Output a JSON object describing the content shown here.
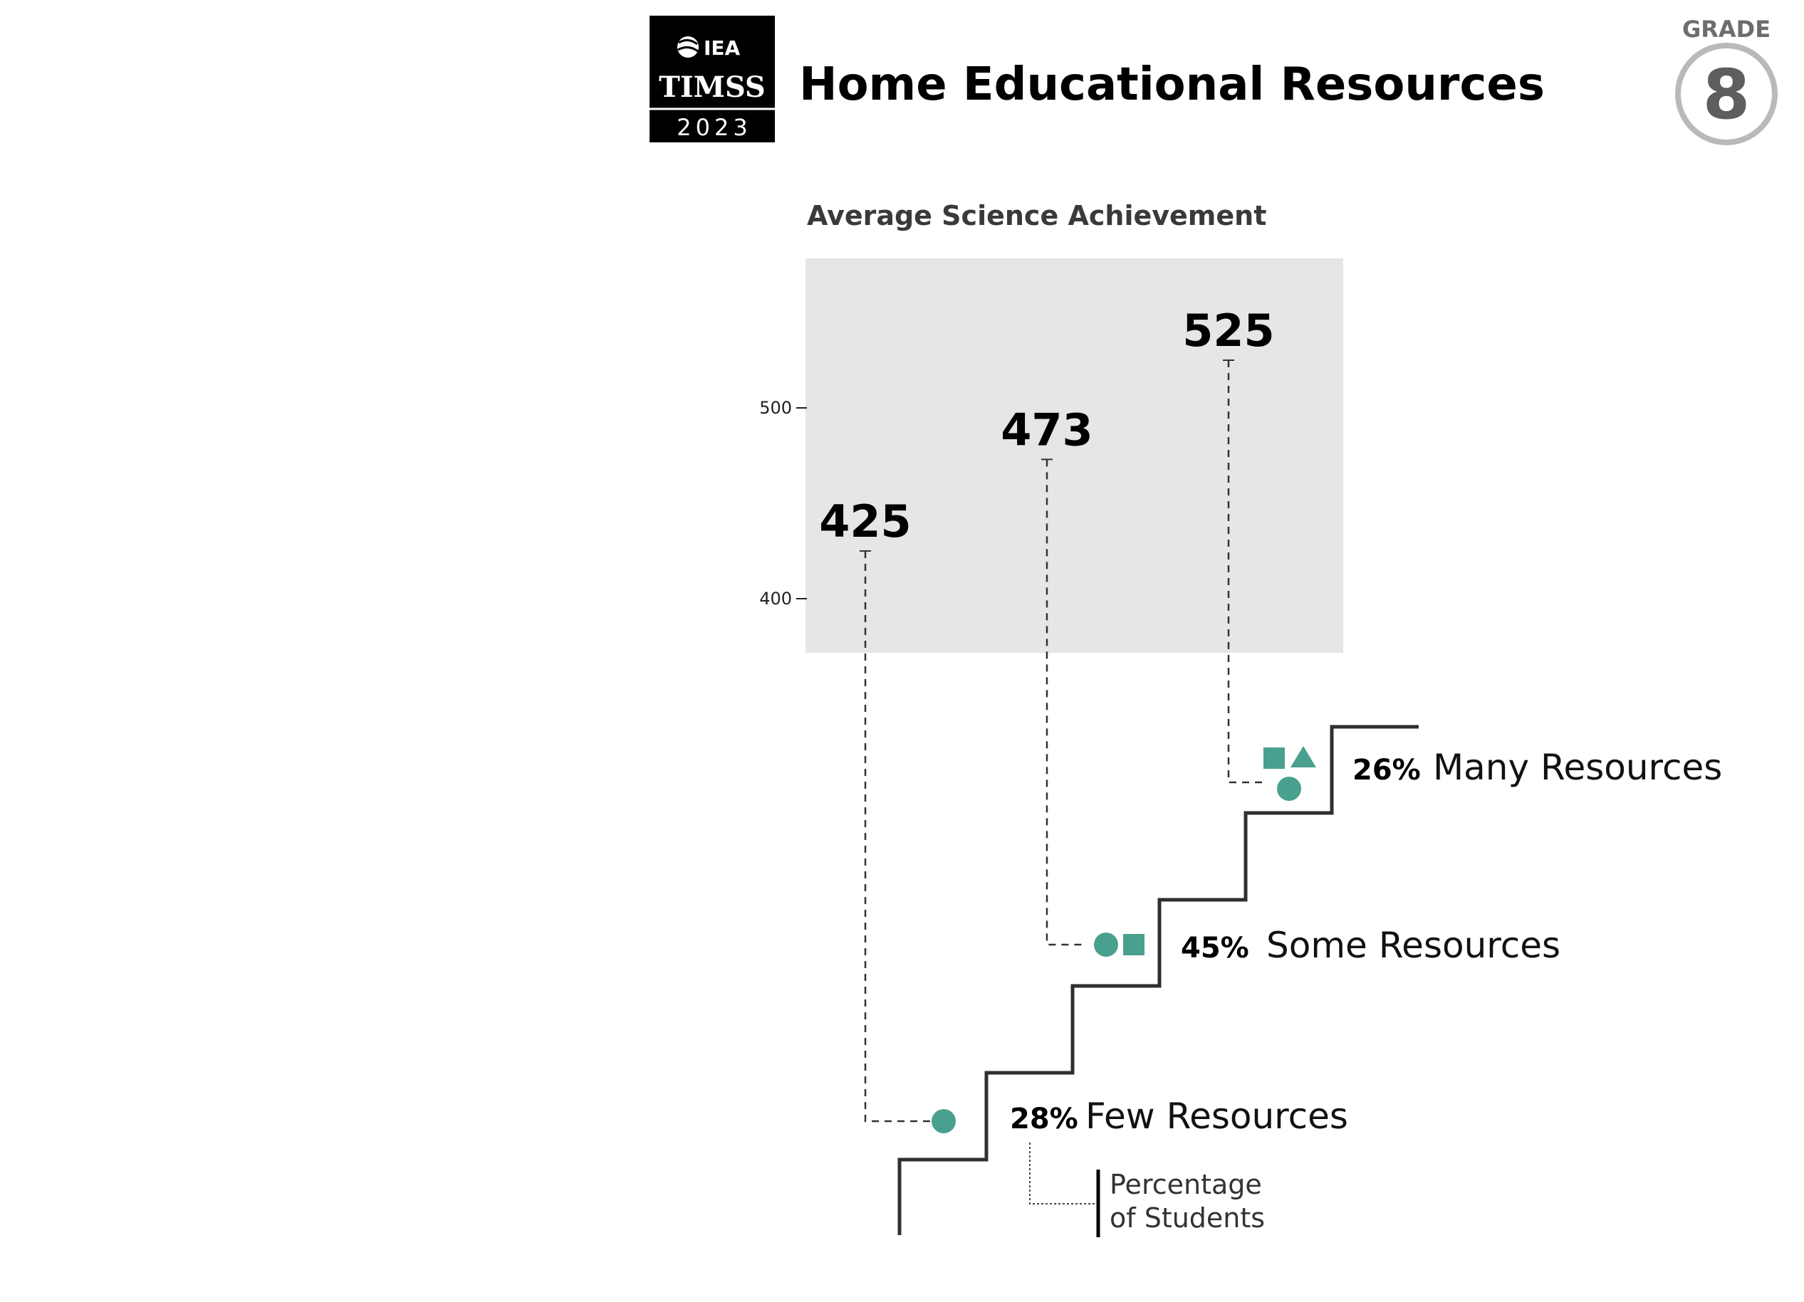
{
  "logo": {
    "org": "IEA",
    "study": "TIMSS",
    "year": "2023"
  },
  "header": {
    "title": "Home Educational Resources",
    "grade_label": "GRADE",
    "grade_value": "8"
  },
  "chart_data": {
    "type": "bar",
    "title": "Home Educational Resources",
    "subtitle": "Average Science Achievement",
    "y_ticks": [
      "500",
      "400"
    ],
    "ylim": [
      370,
      578
    ],
    "categories": [
      "Few Resources",
      "Some Resources",
      "Many Resources"
    ],
    "values": [
      425,
      473,
      525
    ],
    "value_labels": [
      "425",
      "473",
      "525"
    ],
    "percentages": [
      "28%",
      "45%",
      "26%"
    ],
    "percent_values": [
      28,
      45,
      26
    ],
    "grid": false,
    "annotation": "Percentage\nof Students",
    "annotation_lines": [
      "Percentage",
      "of Students"
    ],
    "marker_color": "#4aa08e",
    "panel_color": "#e6e6e6"
  }
}
